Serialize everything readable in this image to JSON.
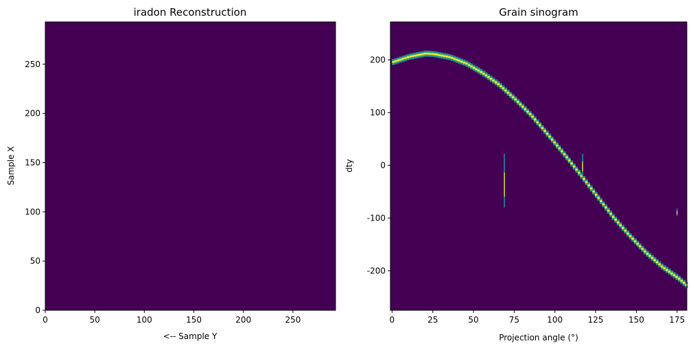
{
  "colors": {
    "background": "#440154",
    "trace_low": "#2a788e",
    "trace_mid": "#22a884",
    "trace_high": "#fde725"
  },
  "chart_data": [
    {
      "type": "heatmap",
      "title": "iradon Reconstruction",
      "xlabel": "<-- Sample Y",
      "ylabel": "Sample X",
      "xlim": [
        0,
        293
      ],
      "ylim": [
        0,
        293
      ],
      "xticks": [
        0,
        50,
        100,
        150,
        200,
        250
      ],
      "yticks": [
        0,
        50,
        100,
        150,
        200,
        250
      ],
      "grid": false,
      "values": "uniform"
    },
    {
      "type": "heatmap",
      "title": "Grain sinogram",
      "xlabel": "Projection angle (°)",
      "ylabel": "dty",
      "xlim": [
        -1,
        181
      ],
      "ylim": [
        -275,
        272
      ],
      "xticks": [
        0,
        25,
        50,
        75,
        100,
        125,
        150,
        175
      ],
      "yticks": [
        -200,
        -100,
        0,
        100,
        200
      ],
      "grid": false,
      "trace": {
        "amplitude": 212,
        "phase_deg": 21,
        "points": [
          [
            0,
            196
          ],
          [
            10,
            206
          ],
          [
            20,
            212
          ],
          [
            25,
            211
          ],
          [
            35,
            205
          ],
          [
            45,
            193
          ],
          [
            55,
            175
          ],
          [
            65,
            153
          ],
          [
            75,
            125
          ],
          [
            85,
            94
          ],
          [
            95,
            58
          ],
          [
            105,
            21
          ],
          [
            115,
            -18
          ],
          [
            125,
            -58
          ],
          [
            135,
            -98
          ],
          [
            145,
            -133
          ],
          [
            155,
            -165
          ],
          [
            165,
            -192
          ],
          [
            175,
            -214
          ],
          [
            180,
            -227
          ]
        ]
      },
      "spikes": [
        {
          "angle": 69,
          "dty_top": 22,
          "dty_bottom": -80
        },
        {
          "angle": 117,
          "dty_top": 22,
          "dty_bottom": -20
        },
        {
          "angle": 175,
          "dty_top": -82,
          "dty_bottom": -96
        }
      ]
    }
  ]
}
